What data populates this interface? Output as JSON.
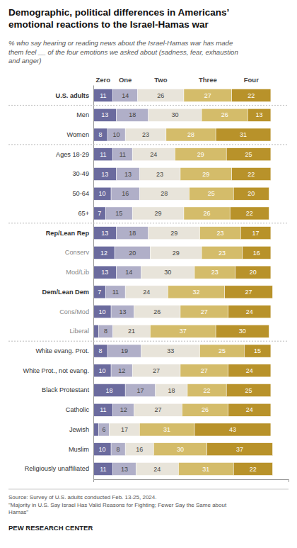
{
  "chart_data": {
    "type": "bar",
    "orientation": "horizontal",
    "stacked": true,
    "data_labels": true,
    "tick_labels": "y",
    "grid": false,
    "title": "Demographic, political differences in Americans’\nemotional reactions to the Israel-Hamas war",
    "subtitle": "% who say hearing or reading news about the Israel-Hamas war has made\nthem feel __ of the four emotions we asked about (sadness, fear, exhaustion\nand anger)",
    "annotations": [
      "Source: Survey of U.S. adults conducted Feb. 13-25, 2024.\n\"Majority in U.S. Say Israel Has Valid Reasons for Fighting; Fewer Say the Same about\nHamas\"",
      "PEW RESEARCH CENTER"
    ],
    "categories": [
      "U.S. adults",
      "Men",
      "Women",
      "Ages 18-29",
      "30-49",
      "50-64",
      "65+",
      "Rep/Lean Rep",
      "Conserv",
      "Mod/Lib",
      "Dem/Lean Dem",
      "Cons/Mod",
      "Liberal",
      "White evang. Prot.",
      "White Prot., not evang.",
      "Black Protestant",
      "Catholic",
      "Jewish",
      "Muslim",
      "Religiously unaffiliated"
    ],
    "xlim": [
      0,
      110
    ],
    "series": [
      {
        "name": "Zero",
        "color": "#6b6b9e",
        "values": [
          11,
          13,
          8,
          11,
          13,
          10,
          7,
          13,
          12,
          13,
          7,
          10,
          3,
          8,
          10,
          18,
          11,
          3,
          10,
          11
        ],
        "value_labels": [
          "11",
          "13",
          "8",
          "11",
          "13",
          "10",
          "7",
          "13",
          "12",
          "13",
          "7",
          "10",
          null,
          "8",
          "10",
          "18",
          "11",
          null,
          "10",
          "11"
        ]
      },
      {
        "name": "One",
        "color": "#b0afc8",
        "values": [
          14,
          18,
          10,
          11,
          13,
          16,
          15,
          18,
          20,
          14,
          11,
          13,
          8,
          19,
          12,
          17,
          12,
          6,
          8,
          13
        ],
        "value_labels": [
          "14",
          "18",
          "10",
          "11",
          "13",
          "16",
          "15",
          "18",
          "20",
          "14",
          "11",
          "13",
          "8",
          "19",
          "12",
          "17",
          "12",
          "6",
          "8",
          "13"
        ]
      },
      {
        "name": "Two",
        "color": "#e8e4da",
        "values": [
          26,
          30,
          23,
          24,
          23,
          28,
          29,
          29,
          29,
          30,
          24,
          26,
          21,
          33,
          27,
          18,
          27,
          17,
          16,
          24
        ],
        "value_labels": [
          "26",
          "30",
          "23",
          "24",
          "23",
          "28",
          "29",
          "29",
          "29",
          "30",
          "24",
          "26",
          "21",
          "33",
          "27",
          "18",
          "27",
          "17",
          "16",
          "24"
        ]
      },
      {
        "name": "Three",
        "color": "#d4bc6a",
        "values": [
          27,
          26,
          28,
          29,
          29,
          25,
          26,
          23,
          23,
          23,
          32,
          27,
          37,
          25,
          27,
          22,
          26,
          31,
          30,
          31
        ],
        "value_labels": [
          "27",
          "26",
          "28",
          "29",
          "29",
          "25",
          "26",
          "23",
          "23",
          "23",
          "32",
          "27",
          "37",
          "25",
          "27",
          "22",
          "26",
          "31",
          "30",
          "31"
        ]
      },
      {
        "name": "Four",
        "color": "#b8922a",
        "values": [
          22,
          13,
          31,
          25,
          22,
          20,
          22,
          17,
          16,
          20,
          27,
          24,
          30,
          15,
          24,
          25,
          24,
          43,
          37,
          22
        ],
        "value_labels": [
          "22",
          "13",
          "31",
          "25",
          "22",
          "20",
          "22",
          "17",
          "16",
          "20",
          "27",
          "24",
          "30",
          "15",
          "24",
          "25",
          "24",
          "43",
          "37",
          "22"
        ]
      }
    ]
  }
}
